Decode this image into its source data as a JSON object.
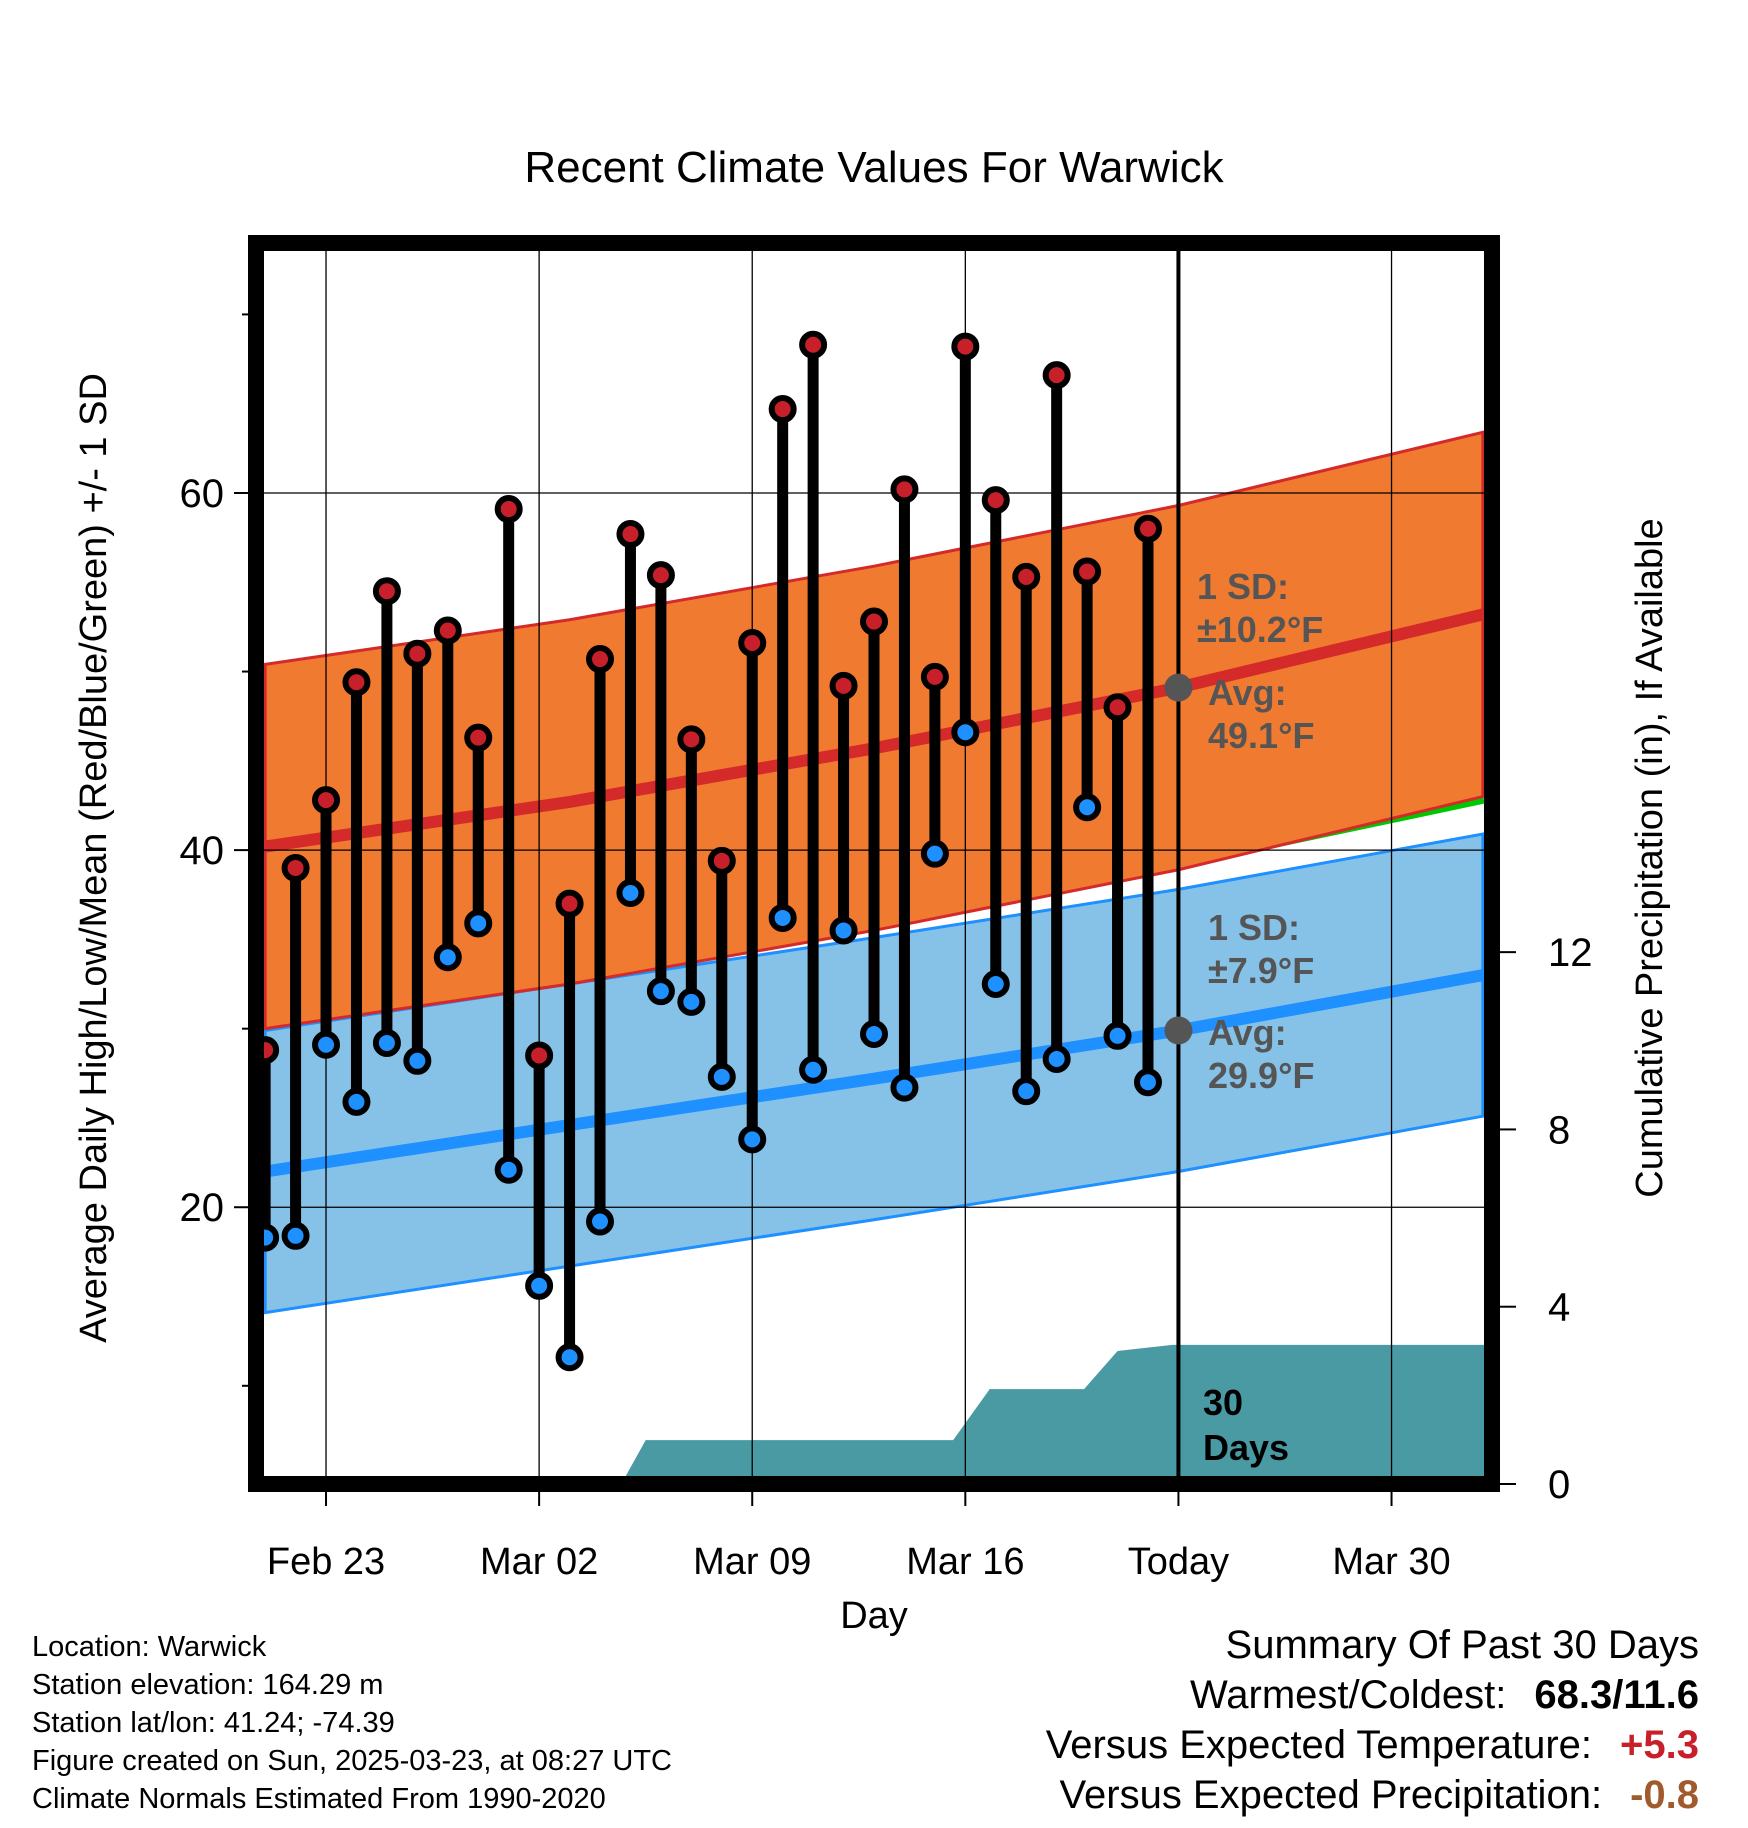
{
  "chart_data": {
    "type": "line",
    "title": "Recent Climate Values For Warwick",
    "xlabel": "Day",
    "ylabel": "Average Daily High/Low/Mean (Red/Blue/Green) +/- 1 SD",
    "y2label": "Cumulative Precipitation (in), If Available",
    "x_tick_labels": [
      "Feb 23",
      "Mar 02",
      "Mar 09",
      "Mar 16",
      "Today",
      "Mar 30"
    ],
    "x_tick_days": [
      2,
      9,
      16,
      23,
      30,
      37
    ],
    "xlim": [
      -0.3,
      40.3
    ],
    "ylim": [
      4.5,
      74
    ],
    "y_ticks": [
      20,
      40,
      60
    ],
    "y2lim": [
      0,
      28
    ],
    "y2_ticks": [
      0,
      4,
      8,
      12
    ],
    "today_day": 30,
    "highs": [
      28.8,
      39.0,
      42.8,
      49.4,
      54.5,
      51.0,
      52.3,
      46.3,
      59.1,
      28.5,
      37.0,
      50.7,
      57.7,
      55.4,
      46.2,
      39.4,
      51.6,
      64.7,
      68.3,
      49.2,
      52.8,
      60.2,
      49.7,
      68.2,
      59.6,
      55.3,
      66.6,
      55.6,
      48.0,
      58.0
    ],
    "lows": [
      18.3,
      18.4,
      29.1,
      25.9,
      29.2,
      28.2,
      34.0,
      35.9,
      22.1,
      15.6,
      11.6,
      19.2,
      37.6,
      32.1,
      31.5,
      27.3,
      23.8,
      36.2,
      27.7,
      35.5,
      29.7,
      26.7,
      39.8,
      46.6,
      32.5,
      26.5,
      28.3,
      42.4,
      29.6,
      27.0
    ],
    "normal_high": {
      "x": [
        0,
        10,
        20,
        30,
        40
      ],
      "y": [
        40.2,
        42.7,
        45.7,
        49.1,
        53.2
      ]
    },
    "normal_high_sd_band": {
      "upper": [
        50.4,
        52.9,
        55.9,
        59.3,
        63.4
      ],
      "lower": [
        30.0,
        32.5,
        35.5,
        38.9,
        43.0
      ]
    },
    "normal_low": {
      "x": [
        0,
        10,
        20,
        30,
        40
      ],
      "y": [
        22.0,
        24.6,
        27.2,
        29.9,
        33.0
      ]
    },
    "normal_low_sd_band": {
      "upper": [
        29.9,
        32.5,
        35.1,
        37.8,
        40.9
      ],
      "lower": [
        14.1,
        16.7,
        19.3,
        22.0,
        25.1
      ]
    },
    "normal_mean": {
      "x": [
        0,
        10,
        20,
        30,
        40
      ],
      "y": [
        31.1,
        33.7,
        36.5,
        39.5,
        43.1
      ]
    },
    "precip_cumulative": {
      "x": [
        11.7,
        12.5,
        22.6,
        23.8,
        26.9,
        28.0,
        29.8,
        40.3
      ],
      "y": [
        0,
        0.99,
        0.99,
        2.14,
        2.14,
        3.0,
        3.14,
        3.14
      ]
    },
    "annotations": {
      "high_sd_label": "1 SD:",
      "high_sd_value": "±10.2°F",
      "high_avg_label": "Avg:",
      "high_avg_value": "49.1°F",
      "low_sd_label": "1 SD:",
      "low_sd_value": "±7.9°F",
      "low_avg_label": "Avg:",
      "low_avg_value": "29.9°F",
      "window_label_1": "30",
      "window_label_2": "Days"
    },
    "colors": {
      "high_band": "#f07a30",
      "high_line": "#d42a2a",
      "low_band": "#86c2e8",
      "low_line": "#1e90ff",
      "mean_line": "#00c800",
      "precip": "#4a9aa3",
      "high_marker": "#c8202a",
      "low_marker": "#1e90ff",
      "annotation_text": "#555555"
    }
  },
  "info": {
    "location": "Location: Warwick",
    "elevation": "Station elevation: 164.29 m",
    "latlon": "Station lat/lon: 41.24; -74.39",
    "created": "Figure created on Sun, 2025-03-23, at 08:27 UTC",
    "normals": "Climate Normals Estimated From 1990-2020"
  },
  "summary": {
    "title": "Summary Of Past 30 Days",
    "warm_cold_label": "Warmest/Coldest:",
    "warm_cold_value": "68.3/11.6",
    "temp_label": "Versus Expected Temperature:",
    "temp_value": "+5.3",
    "precip_label": "Versus Expected Precipitation:",
    "precip_value": "-0.8"
  }
}
